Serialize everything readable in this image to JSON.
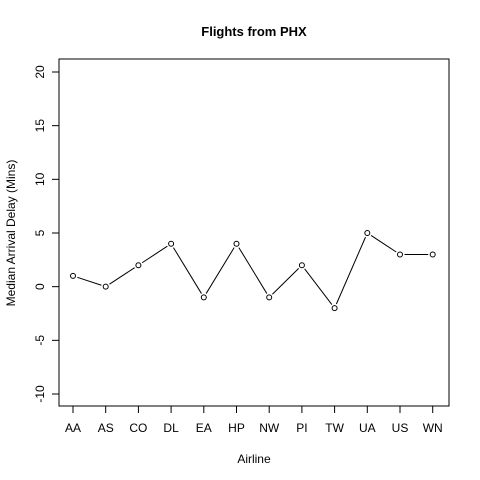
{
  "chart_data": {
    "type": "line",
    "title": "Flights from PHX",
    "xlabel": "Airline",
    "ylabel": "Median Arrival Delay (Mins)",
    "categories": [
      "AA",
      "AS",
      "CO",
      "DL",
      "EA",
      "HP",
      "NW",
      "PI",
      "TW",
      "UA",
      "US",
      "WN"
    ],
    "series": [
      {
        "values": [
          1,
          0,
          2,
          4,
          -1,
          4,
          -1,
          2,
          -2,
          5,
          3,
          3
        ]
      }
    ],
    "ylim": [
      -10,
      20
    ],
    "yticks": [
      -10,
      -5,
      0,
      5,
      10,
      15,
      20
    ],
    "ytick_labels": [
      "-10",
      "-5",
      "0",
      "5",
      "10",
      "15",
      "20"
    ],
    "markers": "open-circle",
    "line_color": "#000000",
    "grid": false,
    "legend": "none"
  }
}
